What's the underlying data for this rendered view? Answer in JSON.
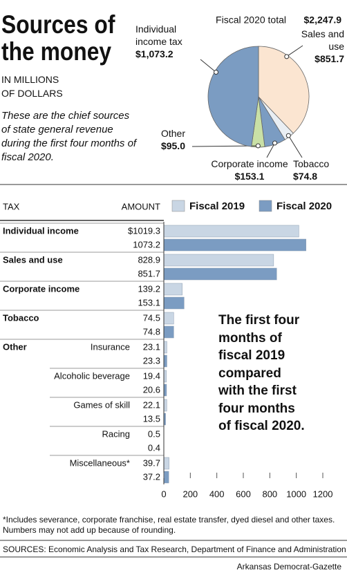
{
  "header": {
    "title": "Sources of the money",
    "units": "IN MILLIONS OF DOLLARS",
    "description": "These are the chief sources of state general revenue during the first four months of fiscal 2020."
  },
  "chart_data": [
    {
      "type": "pie",
      "title": "Fiscal 2020 total",
      "total": {
        "value": 2247.9,
        "label": "$2,247.9"
      },
      "categories": [
        "Sales and use",
        "Tobacco",
        "Corporate income",
        "Other",
        "Individual income tax"
      ],
      "values": [
        851.7,
        74.8,
        153.1,
        95.0,
        1073.2
      ],
      "value_labels": [
        "$851.7",
        "$74.8",
        "$153.1",
        "$95.0",
        "$1,073.2"
      ],
      "colors": [
        "#fbe5d1",
        "#e9eef3",
        "#7b9cc2",
        "#c9e0a6",
        "#7b9cc2"
      ]
    },
    {
      "type": "bar",
      "orientation": "horizontal",
      "column_headers": [
        "TAX",
        "AMOUNT"
      ],
      "categories": [
        "Individual income",
        "Sales and use",
        "Corporate income",
        "Tobacco",
        "Insurance",
        "Alcoholic beverage",
        "Games of skill",
        "Racing",
        "Miscellaneous*"
      ],
      "group_label": "Other",
      "series": [
        {
          "name": "Fiscal 2019",
          "color": "#c9d6e4",
          "values": [
            1019.3,
            828.9,
            139.2,
            74.5,
            23.1,
            19.4,
            22.1,
            0.5,
            39.7
          ],
          "value_labels": [
            "$1019.3",
            "828.9",
            "139.2",
            "74.5",
            "23.1",
            "19.4",
            "22.1",
            "0.5",
            "39.7"
          ]
        },
        {
          "name": "Fiscal 2020",
          "color": "#7b9cc2",
          "values": [
            1073.2,
            851.7,
            153.1,
            74.8,
            23.3,
            20.6,
            13.5,
            0.4,
            37.2
          ]
        }
      ],
      "xlim": [
        0,
        1200
      ],
      "xticks": [
        0,
        200,
        400,
        600,
        800,
        1000,
        1200
      ],
      "annotation": "The first four months of fiscal 2019 compared with the first four months of fiscal 2020."
    }
  ],
  "footnote": "*Includes severance, corporate franchise, real estate transfer, dyed diesel and other taxes. Numbers may not add up because of rounding.",
  "sources": "SOURCES: Economic Analysis and Tax Research, Department of Finance and Administration",
  "credit": "Arkansas Democrat-Gazette"
}
